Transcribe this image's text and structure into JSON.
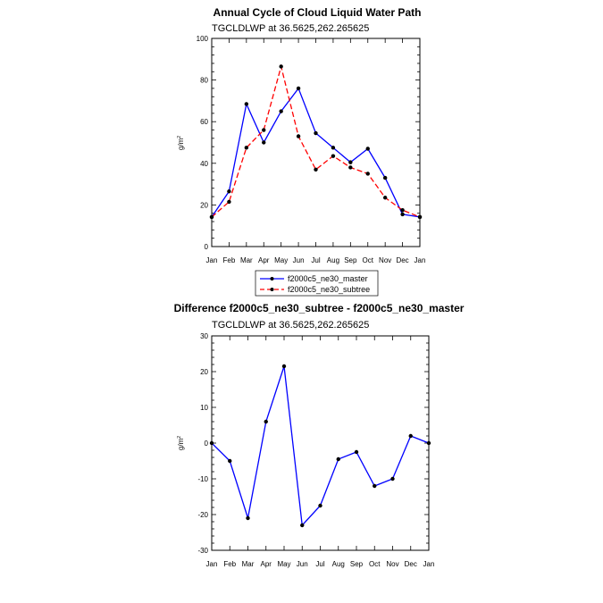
{
  "chart_data": [
    {
      "type": "line",
      "title": "Annual Cycle of Cloud Liquid Water Path",
      "subtitle": "TGCLDLWP at 36.5625,262.265625",
      "ylabel_main": "g/m",
      "ylabel_sup": "2",
      "categories": [
        "Jan",
        "Feb",
        "Mar",
        "Apr",
        "May",
        "Jun",
        "Jul",
        "Aug",
        "Sep",
        "Oct",
        "Nov",
        "Dec",
        "Jan"
      ],
      "ylim": [
        0,
        100
      ],
      "yticks": [
        0,
        20,
        40,
        60,
        80,
        100
      ],
      "series": [
        {
          "name": "f2000c5_ne30_master",
          "color": "#0000ff",
          "dash": "solid",
          "values": [
            14.2,
            26.5,
            68.5,
            50.0,
            65.0,
            76.0,
            54.5,
            47.5,
            40.5,
            47.0,
            33.0,
            15.5,
            14.2
          ]
        },
        {
          "name": "f2000c5_ne30_subtree",
          "color": "#ff0000",
          "dash": "dashed",
          "values": [
            14.2,
            21.5,
            47.5,
            56.0,
            86.5,
            53.0,
            37.0,
            43.5,
            38.0,
            35.0,
            23.5,
            17.5,
            14.2
          ]
        }
      ],
      "legend": [
        "f2000c5_ne30_master",
        "f2000c5_ne30_subtree"
      ]
    },
    {
      "type": "line",
      "title": "Difference f2000c5_ne30_subtree - f2000c5_ne30_master",
      "subtitle": "TGCLDLWP at 36.5625,262.265625",
      "ylabel_main": "g/m",
      "ylabel_sup": "2",
      "categories": [
        "Jan",
        "Feb",
        "Mar",
        "Apr",
        "May",
        "Jun",
        "Jul",
        "Aug",
        "Sep",
        "Oct",
        "Nov",
        "Dec",
        "Jan"
      ],
      "ylim": [
        -30,
        30
      ],
      "yticks": [
        -30,
        -20,
        -10,
        0,
        10,
        20,
        30
      ],
      "series": [
        {
          "name": "difference",
          "color": "#0000ff",
          "dash": "solid",
          "values": [
            0,
            -5.0,
            -21.0,
            6.0,
            21.5,
            -23.0,
            -17.5,
            -4.5,
            -2.5,
            -12.0,
            -10.0,
            2.0,
            0
          ]
        }
      ]
    }
  ]
}
